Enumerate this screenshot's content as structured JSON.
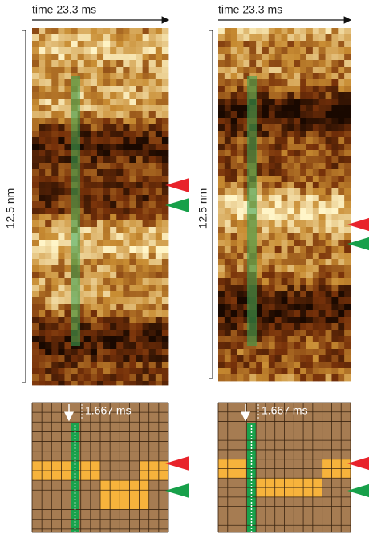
{
  "panels": [
    {
      "time_label": "time 23.3 ms",
      "length_label": "12.5 nm",
      "interval_label": "1.667 ms"
    },
    {
      "time_label": "time 23.3 ms",
      "length_label": "12.5 nm",
      "interval_label": "1.667 ms"
    }
  ]
}
